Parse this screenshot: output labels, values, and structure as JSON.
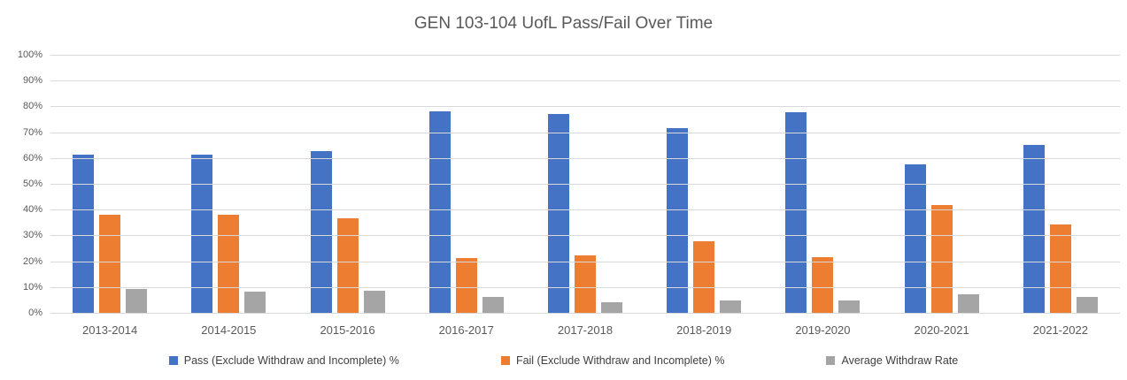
{
  "chart_data": {
    "type": "bar",
    "title": "GEN 103-104 UofL Pass/Fail Over Time",
    "xlabel": "",
    "ylabel": "",
    "ylim": [
      0,
      100
    ],
    "ytick_step": 10,
    "ytick_labels": [
      "0%",
      "10%",
      "20%",
      "30%",
      "40%",
      "50%",
      "60%",
      "70%",
      "80%",
      "90%",
      "100%"
    ],
    "grid": true,
    "legend_position": "bottom",
    "categories": [
      "2013-2014",
      "2014-2015",
      "2015-2016",
      "2016-2017",
      "2017-2018",
      "2018-2019",
      "2019-2020",
      "2020-2021",
      "2021-2022"
    ],
    "series": [
      {
        "key": "pass",
        "name": "Pass (Exclude Withdraw and Incomplete) %",
        "color": "#4472C4",
        "values": [
          61.5,
          61.5,
          63,
          78.5,
          77.5,
          72,
          78,
          58,
          65.5
        ]
      },
      {
        "key": "fail",
        "name": "Fail (Exclude Withdraw and Incomplete) %",
        "color": "#ED7D31",
        "values": [
          38.5,
          38.5,
          37,
          21.5,
          22.5,
          28,
          22,
          42,
          34.5
        ]
      },
      {
        "key": "withdraw",
        "name": "Average Withdraw Rate",
        "color": "#A5A5A5",
        "values": [
          9.5,
          8.5,
          9,
          6.5,
          4.5,
          5,
          5,
          7.5,
          6.5
        ]
      }
    ]
  },
  "colors": {
    "title_text": "#595959",
    "axis_text": "#595959",
    "legend_text": "#404040",
    "gridline": "#D9D9D9",
    "background": "#FFFFFF"
  }
}
